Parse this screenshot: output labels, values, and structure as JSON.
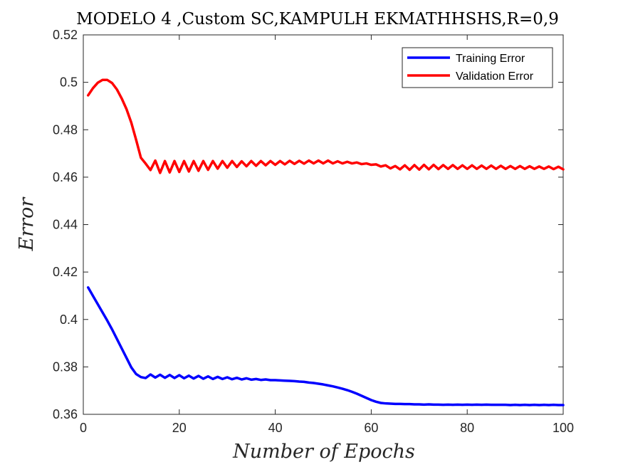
{
  "chart_data": {
    "type": "line",
    "title": "MODELO 4 ,Custom SC,KAMPULH EKMATHHSHS,R=0,9",
    "xlabel": "Number of Epochs",
    "ylabel": "Error",
    "xlim": [
      0,
      100
    ],
    "ylim": [
      0.36,
      0.52
    ],
    "xticks": [
      0,
      20,
      40,
      60,
      80,
      100
    ],
    "xtick_labels": [
      "0",
      "20",
      "40",
      "60",
      "80",
      "100"
    ],
    "yticks": [
      0.36,
      0.38,
      0.4,
      0.42,
      0.44,
      0.46,
      0.48,
      0.5,
      0.52
    ],
    "ytick_labels": [
      "0.36",
      "0.38",
      "0.4",
      "0.42",
      "0.44",
      "0.46",
      "0.48",
      "0.5",
      "0.52"
    ],
    "grid": false,
    "legend_position": "top-right",
    "series": [
      {
        "name": "Training Error",
        "color": "#0000ff",
        "x": [
          1,
          2,
          3,
          4,
          5,
          6,
          7,
          8,
          9,
          10,
          11,
          12,
          13,
          14,
          15,
          16,
          17,
          18,
          19,
          20,
          21,
          22,
          23,
          24,
          25,
          26,
          27,
          28,
          29,
          30,
          31,
          32,
          33,
          34,
          35,
          36,
          37,
          38,
          39,
          40,
          41,
          42,
          43,
          44,
          45,
          46,
          47,
          48,
          49,
          50,
          51,
          52,
          53,
          54,
          55,
          56,
          57,
          58,
          59,
          60,
          61,
          62,
          63,
          64,
          65,
          66,
          67,
          68,
          69,
          70,
          71,
          72,
          73,
          74,
          75,
          76,
          77,
          78,
          79,
          80,
          81,
          82,
          83,
          84,
          85,
          86,
          87,
          88,
          89,
          90,
          91,
          92,
          93,
          94,
          95,
          96,
          97,
          98,
          99,
          100
        ],
        "y": [
          0.4135,
          0.41,
          0.4065,
          0.403,
          0.3995,
          0.3958,
          0.3918,
          0.3878,
          0.3838,
          0.3798,
          0.377,
          0.3757,
          0.3753,
          0.3768,
          0.3755,
          0.3767,
          0.3754,
          0.3766,
          0.3753,
          0.3765,
          0.3752,
          0.3763,
          0.3751,
          0.3762,
          0.375,
          0.376,
          0.3749,
          0.3758,
          0.3749,
          0.3756,
          0.3748,
          0.3754,
          0.3747,
          0.3752,
          0.3746,
          0.3749,
          0.3745,
          0.3747,
          0.3744,
          0.3744,
          0.3743,
          0.3742,
          0.3741,
          0.374,
          0.3738,
          0.3737,
          0.3734,
          0.3732,
          0.3729,
          0.3726,
          0.3722,
          0.3718,
          0.3713,
          0.3708,
          0.3702,
          0.3695,
          0.3687,
          0.3678,
          0.3669,
          0.366,
          0.3653,
          0.3648,
          0.3646,
          0.3645,
          0.3644,
          0.3644,
          0.3643,
          0.3643,
          0.3642,
          0.3642,
          0.3641,
          0.3642,
          0.3641,
          0.3641,
          0.364,
          0.3641,
          0.364,
          0.3641,
          0.364,
          0.3641,
          0.364,
          0.3641,
          0.364,
          0.3641,
          0.364,
          0.364,
          0.364,
          0.364,
          0.3639,
          0.364,
          0.3639,
          0.364,
          0.3639,
          0.364,
          0.3639,
          0.364,
          0.3639,
          0.364,
          0.3639,
          0.3639
        ]
      },
      {
        "name": "Validation Error",
        "color": "#ff0000",
        "x": [
          1,
          2,
          3,
          4,
          5,
          6,
          7,
          8,
          9,
          10,
          11,
          12,
          13,
          14,
          15,
          16,
          17,
          18,
          19,
          20,
          21,
          22,
          23,
          24,
          25,
          26,
          27,
          28,
          29,
          30,
          31,
          32,
          33,
          34,
          35,
          36,
          37,
          38,
          39,
          40,
          41,
          42,
          43,
          44,
          45,
          46,
          47,
          48,
          49,
          50,
          51,
          52,
          53,
          54,
          55,
          56,
          57,
          58,
          59,
          60,
          61,
          62,
          63,
          64,
          65,
          66,
          67,
          68,
          69,
          70,
          71,
          72,
          73,
          74,
          75,
          76,
          77,
          78,
          79,
          80,
          81,
          82,
          83,
          84,
          85,
          86,
          87,
          88,
          89,
          90,
          91,
          92,
          93,
          94,
          95,
          96,
          97,
          98,
          99,
          100
        ],
        "y": [
          0.4945,
          0.4975,
          0.4998,
          0.501,
          0.501,
          0.4997,
          0.497,
          0.4932,
          0.4887,
          0.483,
          0.4758,
          0.4682,
          0.4657,
          0.463,
          0.467,
          0.4618,
          0.4668,
          0.462,
          0.4668,
          0.4622,
          0.4668,
          0.4624,
          0.4668,
          0.4627,
          0.4668,
          0.4631,
          0.4668,
          0.4636,
          0.4668,
          0.464,
          0.4668,
          0.4643,
          0.4667,
          0.4646,
          0.4668,
          0.4648,
          0.4668,
          0.465,
          0.4668,
          0.4652,
          0.4668,
          0.4654,
          0.4669,
          0.4656,
          0.4669,
          0.4657,
          0.467,
          0.4658,
          0.467,
          0.4658,
          0.467,
          0.4658,
          0.4667,
          0.4658,
          0.4665,
          0.4658,
          0.4662,
          0.4655,
          0.4658,
          0.4652,
          0.4654,
          0.4645,
          0.465,
          0.4637,
          0.4647,
          0.4633,
          0.465,
          0.4631,
          0.4651,
          0.4632,
          0.4652,
          0.4633,
          0.4652,
          0.4634,
          0.4651,
          0.4635,
          0.4651,
          0.4635,
          0.465,
          0.4635,
          0.465,
          0.4635,
          0.4649,
          0.4635,
          0.4649,
          0.4635,
          0.4648,
          0.4635,
          0.4647,
          0.4635,
          0.4647,
          0.4635,
          0.4646,
          0.4635,
          0.4645,
          0.4635,
          0.4645,
          0.4634,
          0.4644,
          0.4633
        ]
      }
    ]
  }
}
